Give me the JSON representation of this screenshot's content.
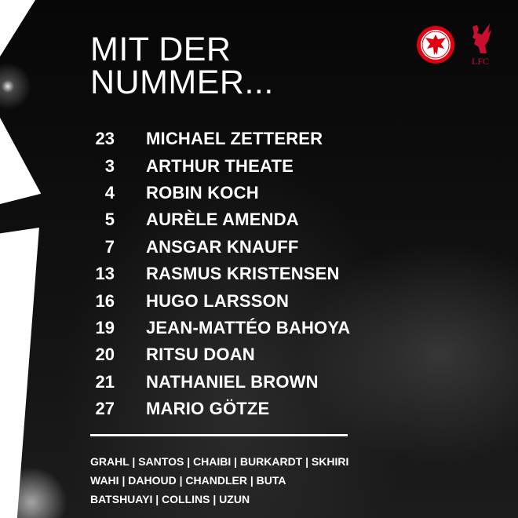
{
  "title_lines": [
    "MIT DER",
    "NUMMER..."
  ],
  "logos": [
    {
      "name": "eintracht-frankfurt-crest",
      "color": "#e1000f"
    },
    {
      "name": "liverpool-fc-crest",
      "text": "LFC",
      "color": "#c8102e"
    }
  ],
  "lineup": [
    {
      "number": "23",
      "name": "MICHAEL ZETTERER"
    },
    {
      "number": "3",
      "name": "ARTHUR THEATE"
    },
    {
      "number": "4",
      "name": "ROBIN KOCH"
    },
    {
      "number": "5",
      "name": "AURÈLE AMENDA"
    },
    {
      "number": "7",
      "name": "ANSGAR KNAUFF"
    },
    {
      "number": "13",
      "name": "RASMUS KRISTENSEN"
    },
    {
      "number": "16",
      "name": "HUGO LARSSON"
    },
    {
      "number": "19",
      "name": "JEAN-MATTÉO BAHOYA"
    },
    {
      "number": "20",
      "name": "RITSU DOAN"
    },
    {
      "number": "21",
      "name": "NATHANIEL BROWN"
    },
    {
      "number": "27",
      "name": "MARIO GÖTZE"
    }
  ],
  "substitutes": [
    "GRAHL | SANTOS | CHAIBI | BURKARDT | SKHIRI",
    "WAHI | DAHOUD | CHANDLER | BUTA",
    "BATSHUAYI | COLLINS | UZUN"
  ]
}
